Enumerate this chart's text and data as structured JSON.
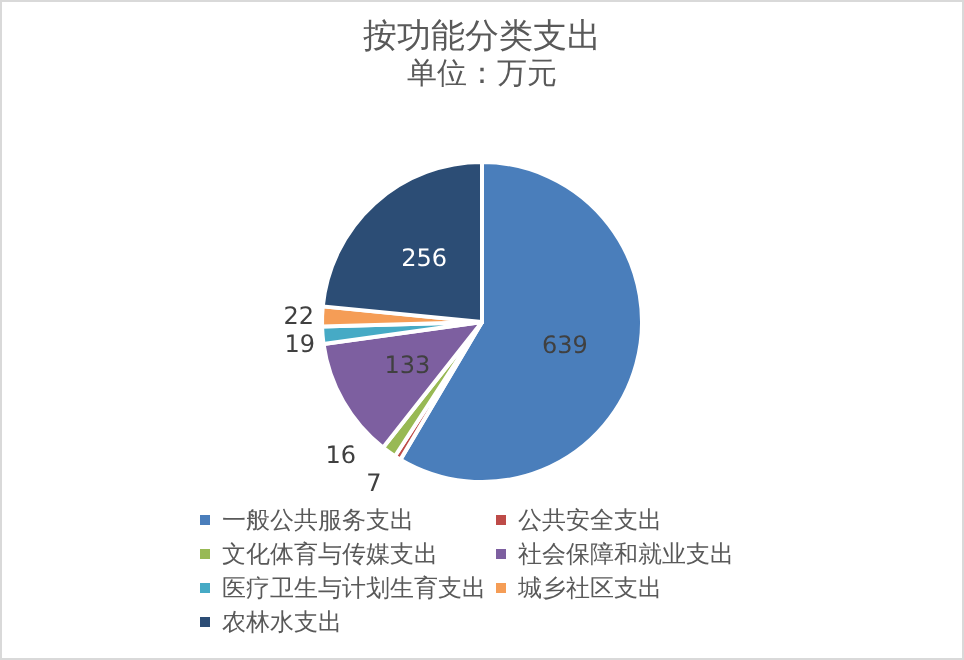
{
  "chart_data": {
    "type": "pie",
    "title": "按功能分类支出",
    "subtitle": "单位：万元",
    "categories": [
      "一般公共服务支出",
      "公共安全支出",
      "文化体育与传媒支出",
      "社会保障和就业支出",
      "医疗卫生与计划生育支出",
      "城乡社区支出",
      "农林水支出"
    ],
    "values": [
      639,
      7,
      16,
      133,
      19,
      22,
      256
    ],
    "colors": [
      "#4a7ebb",
      "#be4b48",
      "#98b954",
      "#7d5fa0",
      "#46aac5",
      "#f59d56",
      "#2c4d75"
    ],
    "data_labels": true,
    "legend": "bottom"
  }
}
